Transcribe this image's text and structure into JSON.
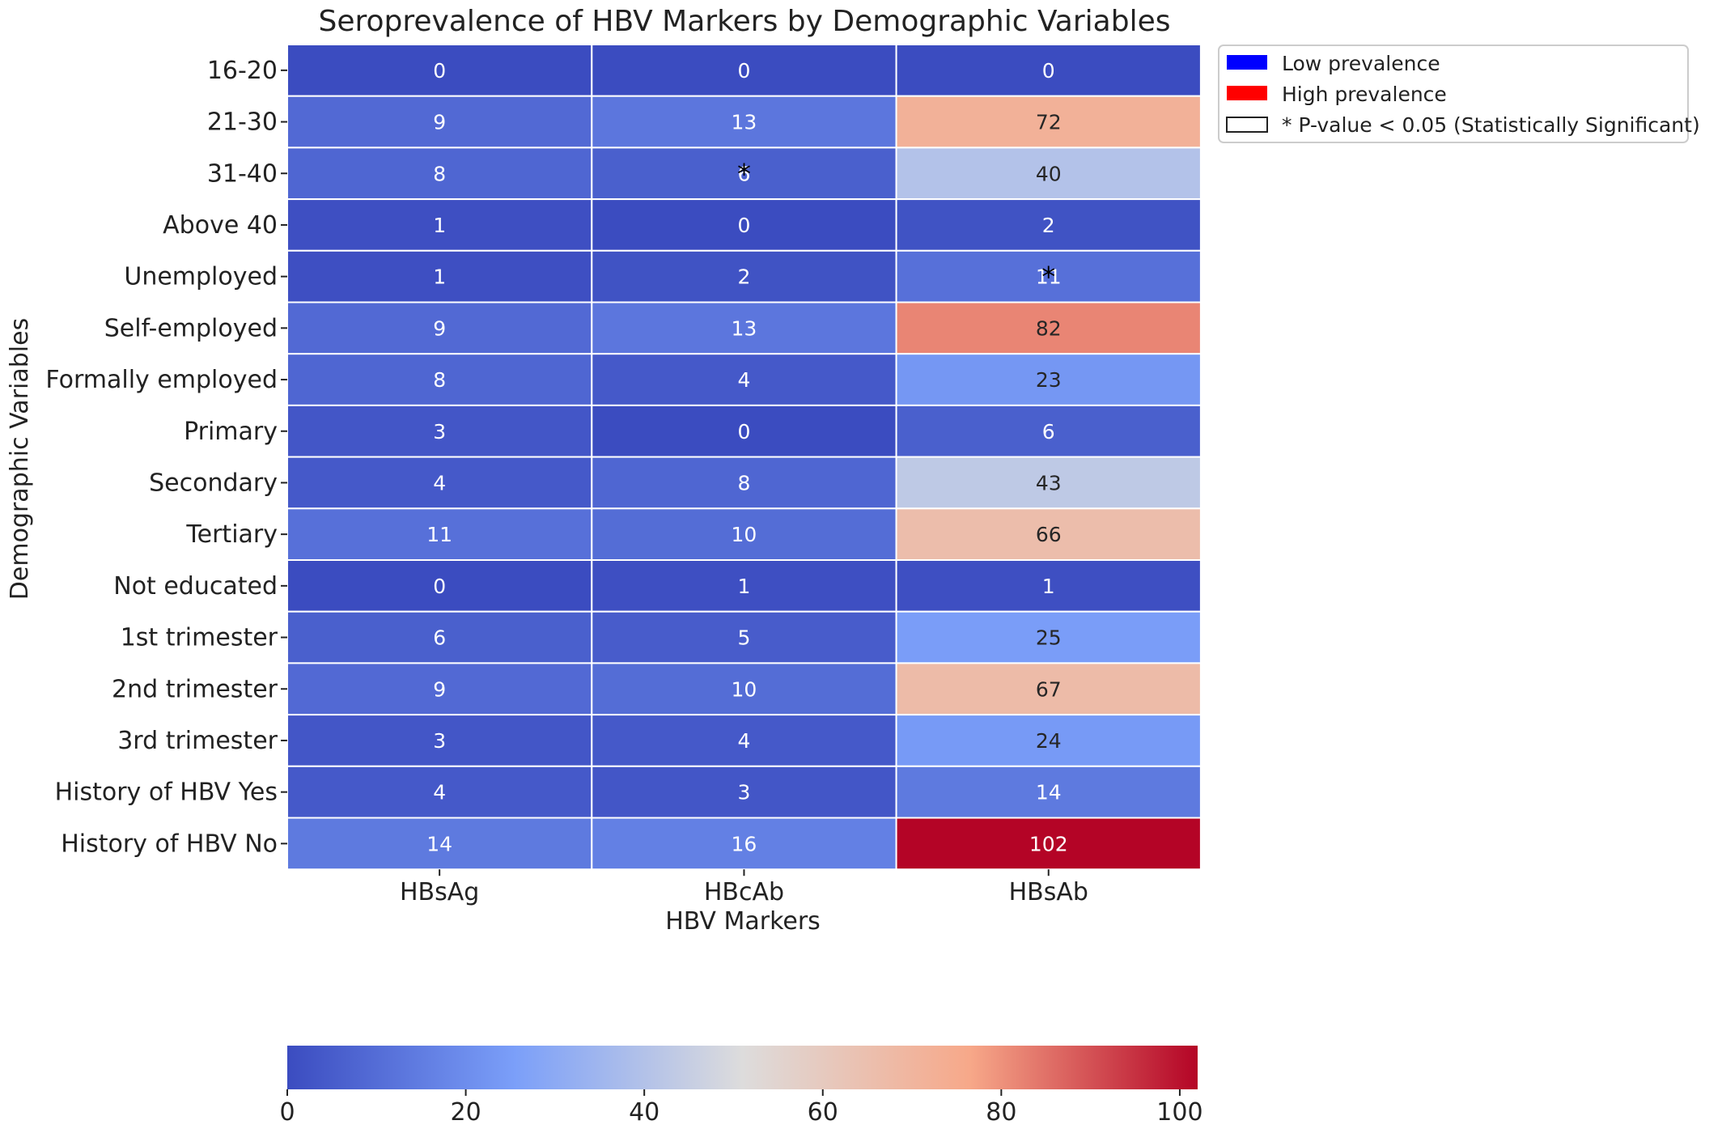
{
  "chart_data": {
    "type": "heatmap",
    "title": "Seroprevalence of HBV Markers by Demographic Variables",
    "xlabel": "HBV Markers",
    "ylabel": "Demographic Variables",
    "x_categories": [
      "HBsAg",
      "HBcAb",
      "HBsAb"
    ],
    "y_categories": [
      "16-20",
      "21-30",
      "31-40",
      "Above 40",
      "Unemployed",
      "Self-employed",
      "Formally employed",
      "Primary",
      "Secondary",
      "Tertiary",
      "Not educated",
      "1st trimester",
      "2nd trimester",
      "3rd trimester",
      "History of HBV Yes",
      "History of HBV No"
    ],
    "values": [
      [
        0,
        0,
        0
      ],
      [
        9,
        13,
        72
      ],
      [
        8,
        6,
        40
      ],
      [
        1,
        0,
        2
      ],
      [
        1,
        2,
        11
      ],
      [
        9,
        13,
        82
      ],
      [
        8,
        4,
        23
      ],
      [
        3,
        0,
        6
      ],
      [
        4,
        8,
        43
      ],
      [
        11,
        10,
        66
      ],
      [
        0,
        1,
        1
      ],
      [
        6,
        5,
        25
      ],
      [
        9,
        10,
        67
      ],
      [
        3,
        4,
        24
      ],
      [
        4,
        3,
        14
      ],
      [
        14,
        16,
        102
      ]
    ],
    "significant_marks": [
      {
        "row": "31-40",
        "column": "HBcAb",
        "symbol": "*"
      },
      {
        "row": "Unemployed",
        "column": "HBsAb",
        "symbol": "*"
      }
    ],
    "colormap": "coolwarm",
    "colorbar": {
      "range": [
        0,
        102
      ],
      "ticks": [
        0,
        20,
        40,
        60,
        80,
        100
      ],
      "orientation": "horizontal"
    },
    "legend": {
      "placement": "outside-top-right",
      "entries": [
        {
          "label": "Low prevalence",
          "color": "#0000ff"
        },
        {
          "label": "High prevalence",
          "color": "#ff0000"
        },
        {
          "label": "* P-value < 0.05 (Statistically Significant)",
          "color": "#ffffff"
        }
      ]
    }
  }
}
